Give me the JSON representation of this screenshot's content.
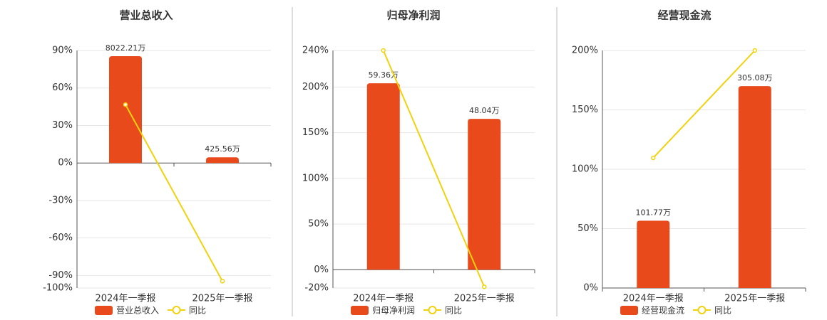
{
  "chart_data": [
    {
      "type": "bar",
      "title": "营业总收入",
      "categories": [
        "2024年一季报",
        "2025年一季报"
      ],
      "series": [
        {
          "name": "营业总收入",
          "type": "bar",
          "axis": "y2",
          "color": "#e84a1c",
          "values": [
            8022.21,
            425.56
          ],
          "value_labels": [
            "8022.21万",
            "425.56万"
          ]
        },
        {
          "name": "同比",
          "type": "line",
          "color": "#f2d20c",
          "values": [
            46.7,
            -94.5
          ]
        }
      ],
      "ylim": [
        -100,
        90
      ],
      "yticks": [
        {
          "value": -100,
          "label": "-100%"
        },
        {
          "value": -90,
          "label": "-90%"
        },
        {
          "value": -60,
          "label": "-60%"
        },
        {
          "value": -30,
          "label": "-30%"
        },
        {
          "value": 0,
          "label": "0%"
        },
        {
          "value": 30,
          "label": "30%"
        },
        {
          "value": 60,
          "label": "60%"
        },
        {
          "value": 90,
          "label": "90%"
        }
      ],
      "y2lim": [
        -9390,
        8450
      ]
    },
    {
      "type": "bar",
      "title": "归母净利润",
      "categories": [
        "2024年一季报",
        "2025年一季报"
      ],
      "series": [
        {
          "name": "归母净利润",
          "type": "bar",
          "axis": "y2",
          "color": "#e84a1c",
          "values": [
            59.36,
            48.04
          ],
          "value_labels": [
            "59.36万",
            "48.04万"
          ]
        },
        {
          "name": "同比",
          "type": "line",
          "color": "#f2d20c",
          "values": [
            240,
            -18.7
          ]
        }
      ],
      "ylim": [
        -20,
        240
      ],
      "yticks": [
        {
          "value": -20,
          "label": "-20%"
        },
        {
          "value": 0,
          "label": "0%"
        },
        {
          "value": 50,
          "label": "50%"
        },
        {
          "value": 100,
          "label": "100%"
        },
        {
          "value": 150,
          "label": "150%"
        },
        {
          "value": 200,
          "label": "200%"
        },
        {
          "value": 240,
          "label": "240%"
        }
      ],
      "y2lim": [
        -5.82,
        69.8
      ]
    },
    {
      "type": "bar",
      "title": "经营现金流",
      "categories": [
        "2024年一季报",
        "2025年一季报"
      ],
      "series": [
        {
          "name": "经营现金流",
          "type": "bar",
          "axis": "y2",
          "color": "#e84a1c",
          "values": [
            101.77,
            305.08
          ],
          "value_labels": [
            "101.77万",
            "305.08万"
          ]
        },
        {
          "name": "同比",
          "type": "line",
          "color": "#f2d20c",
          "values": [
            109.6,
            200
          ]
        }
      ],
      "ylim": [
        0,
        200
      ],
      "yticks": [
        {
          "value": 0,
          "label": "0%"
        },
        {
          "value": 50,
          "label": "50%"
        },
        {
          "value": 100,
          "label": "100%"
        },
        {
          "value": 150,
          "label": "150%"
        },
        {
          "value": 200,
          "label": "200%"
        }
      ],
      "y2lim": [
        0,
        359
      ]
    }
  ]
}
